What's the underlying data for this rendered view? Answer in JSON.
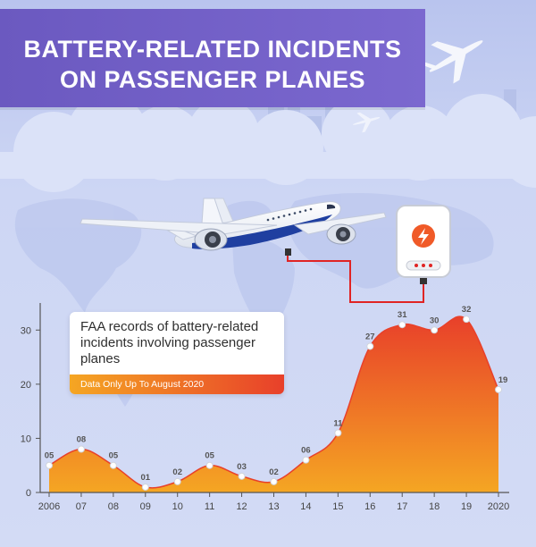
{
  "header": {
    "title_line1": "BATTERY-RELATED INCIDENTS",
    "title_line2": "ON PASSENGER PLANES"
  },
  "callout": {
    "text": "FAA records of battery-related incidents involving passenger planes",
    "note": "Data Only Up To August 2020"
  },
  "colors": {
    "banner": "#6b59c0",
    "sky": "#c9d3f3",
    "area_top": "#e8402a",
    "area_bottom": "#f5a623",
    "label": "#555555"
  },
  "icons": [
    "airplane-icon",
    "power-bank-icon",
    "lightning-bolt-icon",
    "cloud-icon",
    "world-map-icon"
  ],
  "chart_data": {
    "type": "area",
    "title": "FAA records of battery-related incidents involving passenger planes",
    "subtitle": "Data Only Up To August 2020",
    "x": [
      "2006",
      "07",
      "08",
      "09",
      "10",
      "11",
      "12",
      "13",
      "14",
      "15",
      "16",
      "17",
      "18",
      "19",
      "2020"
    ],
    "values": [
      5,
      8,
      5,
      1,
      2,
      5,
      3,
      2,
      6,
      11,
      27,
      31,
      30,
      32,
      19
    ],
    "value_labels": [
      "05",
      "08",
      "05",
      "01",
      "02",
      "05",
      "03",
      "02",
      "06",
      "11",
      "27",
      "31",
      "30",
      "32",
      "19"
    ],
    "yticks": [
      0,
      10,
      20,
      30
    ],
    "ylim": [
      0,
      35
    ],
    "grid": false,
    "legend": "none"
  }
}
